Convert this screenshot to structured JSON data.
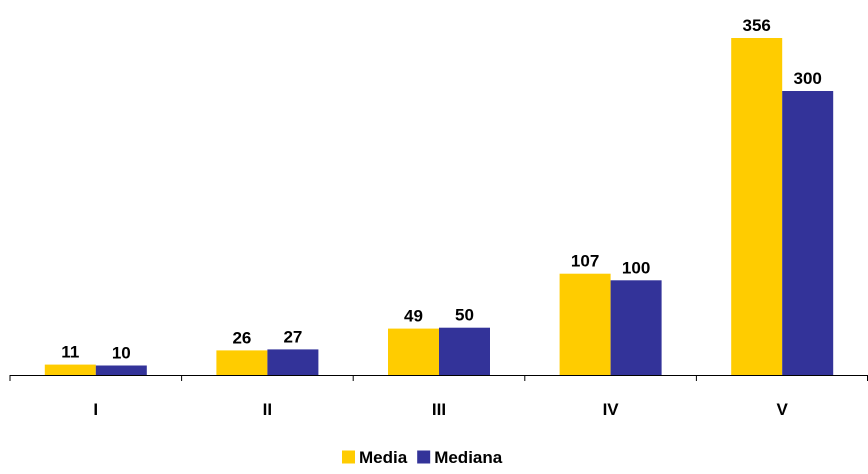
{
  "chart_data": {
    "type": "bar",
    "categories": [
      "I",
      "II",
      "III",
      "IV",
      "V"
    ],
    "series": [
      {
        "name": "Media",
        "values": [
          11,
          26,
          49,
          107,
          356
        ],
        "color": "#FFCC00"
      },
      {
        "name": "Mediana",
        "values": [
          10,
          27,
          50,
          100,
          300
        ],
        "color": "#333399"
      }
    ],
    "ylim": [
      0,
      356
    ],
    "grid": false,
    "legend_position": "bottom",
    "title": "",
    "xlabel": "",
    "ylabel": ""
  }
}
